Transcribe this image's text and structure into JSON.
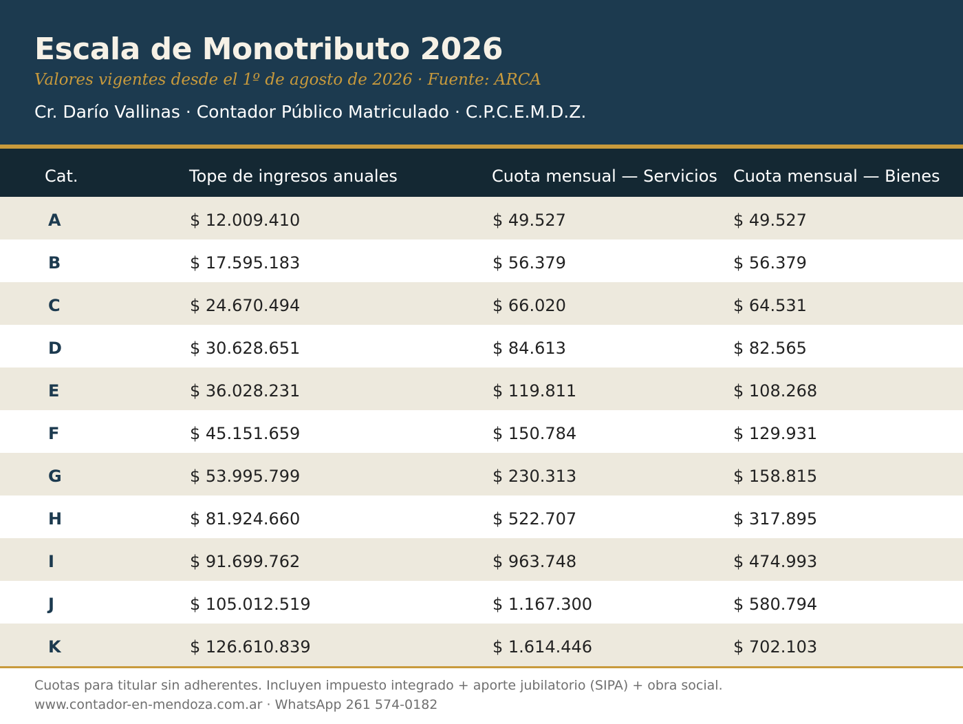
{
  "header": {
    "title": "Escala de Monotributo 2026",
    "subtitle": "Valores vigentes desde el 1º de agosto de 2026 · Fuente: ARCA",
    "author": "Cr. Darío Vallinas · Contador Público Matriculado · C.P.C.E.M.D.Z."
  },
  "table": {
    "headers": {
      "cat": "Cat.",
      "tope": "Tope de ingresos anuales",
      "servicios": "Cuota mensual — Servicios",
      "bienes": "Cuota mensual — Bienes"
    },
    "rows": [
      {
        "cat": "A",
        "tope": "$ 12.009.410",
        "servicios": "$ 49.527",
        "bienes": "$ 49.527"
      },
      {
        "cat": "B",
        "tope": "$ 17.595.183",
        "servicios": "$ 56.379",
        "bienes": "$ 56.379"
      },
      {
        "cat": "C",
        "tope": "$ 24.670.494",
        "servicios": "$ 66.020",
        "bienes": "$ 64.531"
      },
      {
        "cat": "D",
        "tope": "$ 30.628.651",
        "servicios": "$ 84.613",
        "bienes": "$ 82.565"
      },
      {
        "cat": "E",
        "tope": "$ 36.028.231",
        "servicios": "$ 119.811",
        "bienes": "$ 108.268"
      },
      {
        "cat": "F",
        "tope": "$ 45.151.659",
        "servicios": "$ 150.784",
        "bienes": "$ 129.931"
      },
      {
        "cat": "G",
        "tope": "$ 53.995.799",
        "servicios": "$ 230.313",
        "bienes": "$ 158.815"
      },
      {
        "cat": "H",
        "tope": "$ 81.924.660",
        "servicios": "$ 522.707",
        "bienes": "$ 317.895"
      },
      {
        "cat": "I",
        "tope": "$ 91.699.762",
        "servicios": "$ 963.748",
        "bienes": "$ 474.993"
      },
      {
        "cat": "J",
        "tope": "$ 105.012.519",
        "servicios": "$ 1.167.300",
        "bienes": "$ 580.794"
      },
      {
        "cat": "K",
        "tope": "$ 126.610.839",
        "servicios": "$ 1.614.446",
        "bienes": "$ 702.103"
      }
    ]
  },
  "footer": {
    "note": "Cuotas para titular sin adherentes. Incluyen impuesto integrado + aporte jubilatorio (SIPA) + obra social.",
    "contact": "www.contador-en-mendoza.com.ar  ·  WhatsApp 261 574-0182"
  },
  "colors": {
    "header_bg": "#1c3a4f",
    "table_header_bg": "#142833",
    "accent_gold": "#c89a3c",
    "row_alt_bg": "#ede9dd"
  }
}
